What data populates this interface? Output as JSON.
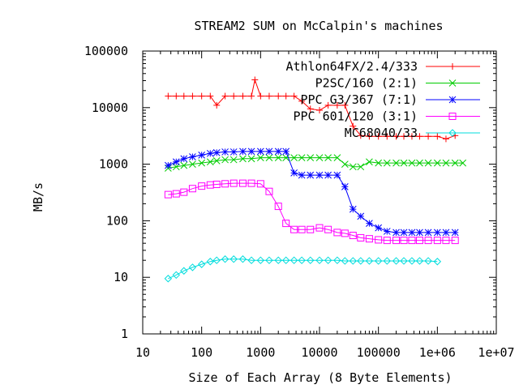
{
  "chart_data": {
    "type": "line",
    "title": "STREAM2 SUM on McCalpin's machines",
    "xlabel": "Size of Each Array (8 Byte Elements)",
    "ylabel": "MB/s",
    "xscale": "log",
    "yscale": "log",
    "xlim": [
      10,
      10000000
    ],
    "ylim": [
      1,
      100000
    ],
    "x_ticks": [
      {
        "value": 10,
        "label": "10"
      },
      {
        "value": 100,
        "label": "100"
      },
      {
        "value": 1000,
        "label": "1000"
      },
      {
        "value": 10000,
        "label": "10000"
      },
      {
        "value": 100000,
        "label": "100000"
      },
      {
        "value": 1000000,
        "label": "1e+06"
      },
      {
        "value": 10000000,
        "label": "1e+07"
      }
    ],
    "y_ticks": [
      {
        "value": 1,
        "label": "1"
      },
      {
        "value": 10,
        "label": "10"
      },
      {
        "value": 100,
        "label": "100"
      },
      {
        "value": 1000,
        "label": "1000"
      },
      {
        "value": 10000,
        "label": "10000"
      },
      {
        "value": 100000,
        "label": "100000"
      }
    ],
    "grid": false,
    "legend": "top-right",
    "series": [
      {
        "name": "Athlon64FX/2.4/333",
        "color": "#ff0000",
        "marker": "plus",
        "points": [
          [
            27,
            16000
          ],
          [
            37,
            16000
          ],
          [
            50,
            16000
          ],
          [
            70,
            16000
          ],
          [
            100,
            16000
          ],
          [
            140,
            16000
          ],
          [
            180,
            11000
          ],
          [
            250,
            16000
          ],
          [
            350,
            16000
          ],
          [
            500,
            16000
          ],
          [
            700,
            16000
          ],
          [
            800,
            31000
          ],
          [
            1000,
            16000
          ],
          [
            1400,
            16000
          ],
          [
            2000,
            16000
          ],
          [
            2700,
            16000
          ],
          [
            3700,
            16000
          ],
          [
            5000,
            13000
          ],
          [
            7000,
            9500
          ],
          [
            10000,
            9000
          ],
          [
            14000,
            11000
          ],
          [
            20000,
            11000
          ],
          [
            27000,
            11000
          ],
          [
            37000,
            4700
          ],
          [
            50000,
            3200
          ],
          [
            70000,
            3100
          ],
          [
            100000,
            3100
          ],
          [
            140000,
            3100
          ],
          [
            200000,
            3100
          ],
          [
            270000,
            3100
          ],
          [
            370000,
            3100
          ],
          [
            500000,
            3100
          ],
          [
            700000,
            3100
          ],
          [
            1000000,
            3100
          ],
          [
            1400000,
            2800
          ],
          [
            2000000,
            3200
          ]
        ]
      },
      {
        "name": "P2SC/160 (2:1)",
        "color": "#00cc00",
        "marker": "cross",
        "points": [
          [
            27,
            850
          ],
          [
            37,
            900
          ],
          [
            50,
            950
          ],
          [
            70,
            1000
          ],
          [
            100,
            1050
          ],
          [
            140,
            1100
          ],
          [
            180,
            1150
          ],
          [
            250,
            1200
          ],
          [
            350,
            1200
          ],
          [
            500,
            1250
          ],
          [
            700,
            1250
          ],
          [
            1000,
            1300
          ],
          [
            1400,
            1300
          ],
          [
            2000,
            1300
          ],
          [
            2700,
            1300
          ],
          [
            3700,
            1300
          ],
          [
            5000,
            1300
          ],
          [
            7000,
            1300
          ],
          [
            10000,
            1300
          ],
          [
            14000,
            1300
          ],
          [
            20000,
            1300
          ],
          [
            27000,
            1000
          ],
          [
            37000,
            900
          ],
          [
            50000,
            900
          ],
          [
            70000,
            1100
          ],
          [
            100000,
            1050
          ],
          [
            140000,
            1050
          ],
          [
            200000,
            1050
          ],
          [
            270000,
            1050
          ],
          [
            370000,
            1050
          ],
          [
            500000,
            1050
          ],
          [
            700000,
            1050
          ],
          [
            1000000,
            1050
          ],
          [
            1400000,
            1050
          ],
          [
            2000000,
            1050
          ],
          [
            2700000,
            1050
          ]
        ]
      },
      {
        "name": "PPC G3/367 (7:1)",
        "color": "#0000ff",
        "marker": "star",
        "points": [
          [
            27,
            950
          ],
          [
            37,
            1100
          ],
          [
            50,
            1250
          ],
          [
            70,
            1350
          ],
          [
            100,
            1450
          ],
          [
            140,
            1550
          ],
          [
            180,
            1600
          ],
          [
            250,
            1650
          ],
          [
            350,
            1650
          ],
          [
            500,
            1680
          ],
          [
            700,
            1680
          ],
          [
            1000,
            1680
          ],
          [
            1400,
            1680
          ],
          [
            2000,
            1680
          ],
          [
            2700,
            1680
          ],
          [
            3700,
            700
          ],
          [
            5000,
            640
          ],
          [
            7000,
            640
          ],
          [
            10000,
            640
          ],
          [
            14000,
            640
          ],
          [
            20000,
            640
          ],
          [
            27000,
            400
          ],
          [
            37000,
            160
          ],
          [
            50000,
            120
          ],
          [
            70000,
            90
          ],
          [
            100000,
            75
          ],
          [
            140000,
            65
          ],
          [
            200000,
            62
          ],
          [
            270000,
            62
          ],
          [
            370000,
            62
          ],
          [
            500000,
            62
          ],
          [
            700000,
            62
          ],
          [
            1000000,
            62
          ],
          [
            1400000,
            62
          ],
          [
            2000000,
            62
          ]
        ]
      },
      {
        "name": "PPC 601/120 (3:1)",
        "color": "#ff00ff",
        "marker": "square",
        "points": [
          [
            27,
            290
          ],
          [
            37,
            300
          ],
          [
            50,
            320
          ],
          [
            70,
            370
          ],
          [
            100,
            410
          ],
          [
            140,
            430
          ],
          [
            180,
            440
          ],
          [
            250,
            450
          ],
          [
            350,
            460
          ],
          [
            500,
            460
          ],
          [
            700,
            460
          ],
          [
            1000,
            450
          ],
          [
            1400,
            330
          ],
          [
            2000,
            180
          ],
          [
            2700,
            90
          ],
          [
            3700,
            70
          ],
          [
            5000,
            70
          ],
          [
            7000,
            70
          ],
          [
            10000,
            75
          ],
          [
            14000,
            70
          ],
          [
            20000,
            62
          ],
          [
            27000,
            60
          ],
          [
            37000,
            55
          ],
          [
            50000,
            50
          ],
          [
            70000,
            48
          ],
          [
            100000,
            46
          ],
          [
            140000,
            45
          ],
          [
            200000,
            45
          ],
          [
            270000,
            45
          ],
          [
            370000,
            45
          ],
          [
            500000,
            45
          ],
          [
            700000,
            45
          ],
          [
            1000000,
            45
          ],
          [
            1400000,
            45
          ],
          [
            2000000,
            45
          ]
        ]
      },
      {
        "name": "MC68040/33",
        "color": "#00dddd",
        "marker": "diamond",
        "points": [
          [
            27,
            9.5
          ],
          [
            37,
            11
          ],
          [
            50,
            13
          ],
          [
            70,
            15
          ],
          [
            100,
            17
          ],
          [
            140,
            19
          ],
          [
            180,
            20
          ],
          [
            250,
            21
          ],
          [
            350,
            21
          ],
          [
            500,
            21
          ],
          [
            700,
            20
          ],
          [
            1000,
            20
          ],
          [
            1400,
            20
          ],
          [
            2000,
            20
          ],
          [
            2700,
            20
          ],
          [
            3700,
            20
          ],
          [
            5000,
            20
          ],
          [
            7000,
            20
          ],
          [
            10000,
            20
          ],
          [
            14000,
            20
          ],
          [
            20000,
            20
          ],
          [
            27000,
            19.5
          ],
          [
            37000,
            19.5
          ],
          [
            50000,
            19.5
          ],
          [
            70000,
            19.5
          ],
          [
            100000,
            19.5
          ],
          [
            140000,
            19.5
          ],
          [
            200000,
            19.5
          ],
          [
            270000,
            19.5
          ],
          [
            370000,
            19.5
          ],
          [
            500000,
            19.5
          ],
          [
            700000,
            19.5
          ],
          [
            1000000,
            19
          ]
        ]
      }
    ]
  }
}
